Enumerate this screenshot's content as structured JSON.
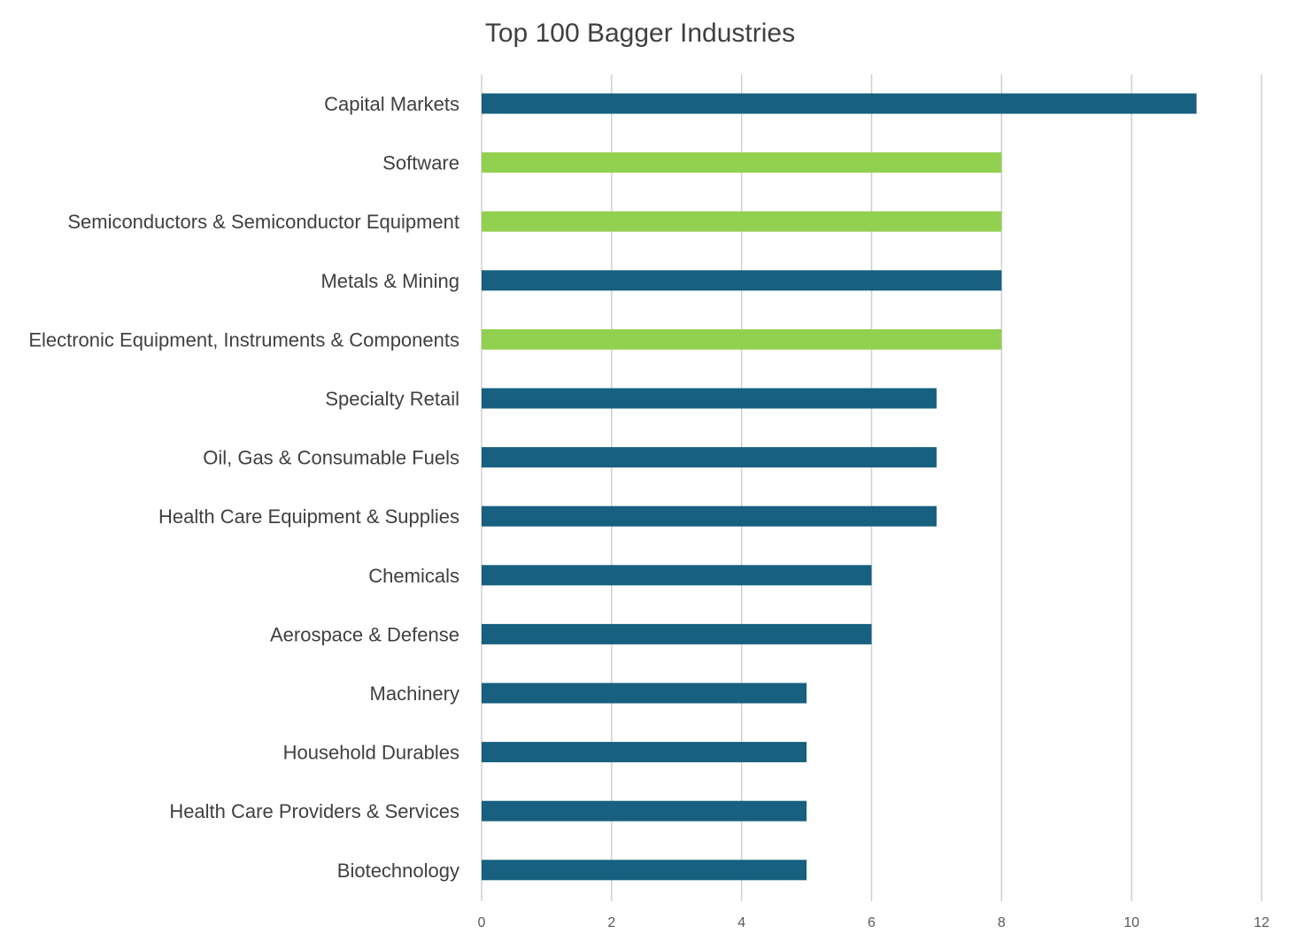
{
  "chart_data": {
    "type": "bar",
    "orientation": "horizontal",
    "title": "Top 100 Bagger Industries",
    "xlabel": "",
    "ylabel": "",
    "xlim": [
      0,
      12
    ],
    "x_ticks": [
      "0",
      "2",
      "4",
      "6",
      "8",
      "10",
      "12"
    ],
    "grid": "vertical",
    "legend": "none",
    "categories": [
      "Capital Markets",
      "Software",
      "Semiconductors & Semiconductor Equipment",
      "Metals & Mining",
      "Electronic Equipment, Instruments & Components",
      "Specialty Retail",
      "Oil, Gas & Consumable Fuels",
      "Health Care Equipment & Supplies",
      "Chemicals",
      "Aerospace & Defense",
      "Machinery",
      "Household Durables",
      "Health Care Providers & Services",
      "Biotechnology"
    ],
    "values": [
      11,
      8,
      8,
      8,
      8,
      7,
      7,
      7,
      6,
      6,
      5,
      5,
      5,
      5
    ],
    "highlighted": [
      false,
      true,
      true,
      false,
      true,
      false,
      false,
      false,
      false,
      false,
      false,
      false,
      false,
      false
    ],
    "colors": {
      "default": "#17607f",
      "highlight": "#92d050",
      "gridline": "#d0d0d0",
      "text": "#404040"
    }
  }
}
